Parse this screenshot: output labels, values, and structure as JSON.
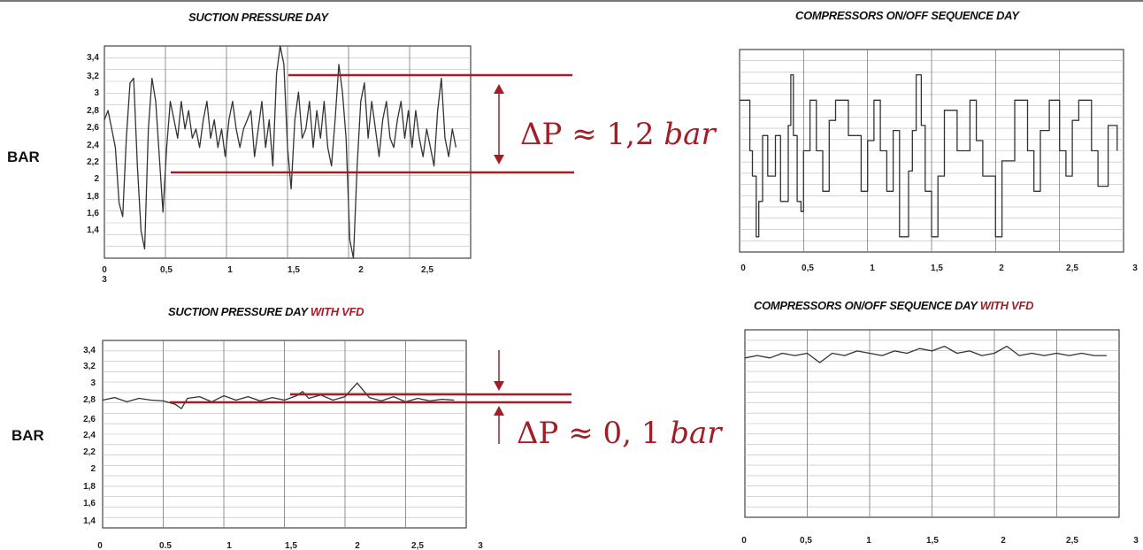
{
  "titles": {
    "p1": "SUCTION PRESSURE DAY",
    "p2": "COMPRESSORS ON/OFF SEQUENCE DAY",
    "p3": "SUCTION PRESSURE DAY",
    "p4": "COMPRESSORS ON/OFF SEQUENCE DAY",
    "vfd": "WITH VFD"
  },
  "bar_label_top": "BAR",
  "bar_label_bottom": "BAR",
  "delta_top": {
    "prefix": "ΔP ≈ 1,2 ",
    "unit": "bar"
  },
  "delta_bottom": {
    "prefix": "ΔP ≈ 0, 1 ",
    "unit": "bar"
  },
  "colors": {
    "accent": "#a01f26",
    "line": "#333333",
    "grid": "#bbbbbb"
  },
  "chart_data": [
    {
      "id": "p1",
      "type": "line",
      "title": "SUCTION PRESSURE DAY",
      "ylabel": "BAR",
      "xlim": [
        0,
        3
      ],
      "ylim": [
        1.2,
        3.5
      ],
      "x_ticks": [
        "0",
        "0,5",
        "1",
        "1,5",
        "2",
        "2,5"
      ],
      "x_tick_extra": "3",
      "y_ticks": [
        "3,4",
        "3,2",
        "3",
        "2,8",
        "2,6",
        "2,4",
        "2,2",
        "2",
        "1,8",
        "1,6",
        "1,4"
      ],
      "reference_lines": [
        3.2,
        2.08
      ],
      "annotation": "ΔP ≈ 1,2 bar",
      "x": [
        0,
        0.03,
        0.06,
        0.09,
        0.12,
        0.15,
        0.18,
        0.21,
        0.24,
        0.27,
        0.3,
        0.33,
        0.36,
        0.39,
        0.42,
        0.45,
        0.48,
        0.51,
        0.54,
        0.57,
        0.6,
        0.63,
        0.66,
        0.69,
        0.72,
        0.75,
        0.78,
        0.81,
        0.84,
        0.87,
        0.9,
        0.93,
        0.96,
        0.99,
        1.02,
        1.05,
        1.08,
        1.11,
        1.14,
        1.17,
        1.2,
        1.23,
        1.26,
        1.29,
        1.32,
        1.35,
        1.38,
        1.41,
        1.44,
        1.47,
        1.5,
        1.53,
        1.56,
        1.59,
        1.62,
        1.65,
        1.68,
        1.71,
        1.74,
        1.77,
        1.8,
        1.83,
        1.86,
        1.89,
        1.92,
        1.95,
        1.98,
        2.01,
        2.04,
        2.07,
        2.1,
        2.13,
        2.16,
        2.19,
        2.22,
        2.25,
        2.28,
        2.31,
        2.34,
        2.37,
        2.4,
        2.43,
        2.46,
        2.49,
        2.52,
        2.55,
        2.58,
        2.61,
        2.64,
        2.67,
        2.7,
        2.73,
        2.76,
        2.79,
        2.82,
        2.85,
        2.88
      ],
      "y": [
        2.7,
        2.8,
        2.6,
        2.4,
        1.8,
        1.65,
        2.5,
        3.1,
        3.15,
        2.2,
        1.5,
        1.3,
        2.6,
        3.15,
        2.9,
        2.3,
        1.7,
        2.4,
        2.9,
        2.7,
        2.5,
        2.9,
        2.6,
        2.8,
        2.5,
        2.6,
        2.4,
        2.7,
        2.9,
        2.5,
        2.7,
        2.4,
        2.6,
        2.3,
        2.7,
        2.9,
        2.6,
        2.4,
        2.6,
        2.7,
        2.8,
        2.3,
        2.6,
        2.9,
        2.4,
        2.7,
        2.2,
        3.2,
        3.5,
        3.3,
        2.4,
        1.95,
        2.7,
        3.0,
        2.5,
        2.6,
        2.9,
        2.4,
        2.8,
        2.5,
        2.9,
        2.4,
        2.2,
        2.7,
        3.3,
        3.0,
        2.5,
        1.4,
        1.2,
        2.2,
        2.9,
        3.1,
        2.5,
        2.9,
        2.6,
        2.3,
        2.7,
        2.9,
        2.5,
        2.4,
        2.7,
        2.9,
        2.5,
        2.8,
        2.4,
        2.8,
        2.5,
        2.3,
        2.6,
        2.4,
        2.2,
        2.8,
        3.15,
        2.5,
        2.3,
        2.6,
        2.4
      ]
    },
    {
      "id": "p2",
      "type": "line",
      "title": "COMPRESSORS ON/OFF SEQUENCE DAY",
      "xlim": [
        0,
        3
      ],
      "ylim": [
        0,
        4
      ],
      "x_ticks": [
        "0",
        "0,5",
        "1",
        "1,5",
        "2",
        "2,5",
        "3"
      ],
      "x": [
        0,
        0.08,
        0.08,
        0.1,
        0.1,
        0.13,
        0.13,
        0.15,
        0.15,
        0.18,
        0.18,
        0.22,
        0.22,
        0.28,
        0.28,
        0.32,
        0.32,
        0.38,
        0.38,
        0.4,
        0.4,
        0.42,
        0.42,
        0.45,
        0.45,
        0.48,
        0.48,
        0.5,
        0.5,
        0.55,
        0.55,
        0.6,
        0.6,
        0.65,
        0.65,
        0.7,
        0.7,
        0.75,
        0.75,
        0.85,
        0.85,
        0.95,
        0.95,
        1.0,
        1.0,
        1.05,
        1.05,
        1.1,
        1.1,
        1.15,
        1.15,
        1.2,
        1.2,
        1.25,
        1.25,
        1.32,
        1.32,
        1.35,
        1.35,
        1.38,
        1.38,
        1.42,
        1.42,
        1.45,
        1.45,
        1.5,
        1.5,
        1.55,
        1.55,
        1.6,
        1.6,
        1.7,
        1.7,
        1.8,
        1.8,
        1.85,
        1.85,
        1.9,
        1.9,
        2.0,
        2.0,
        2.05,
        2.05,
        2.15,
        2.15,
        2.25,
        2.25,
        2.3,
        2.3,
        2.35,
        2.35,
        2.42,
        2.42,
        2.5,
        2.5,
        2.55,
        2.55,
        2.6,
        2.6,
        2.65,
        2.65,
        2.75,
        2.75,
        2.8,
        2.8,
        2.88,
        2.88,
        2.95,
        2.95
      ],
      "y": [
        3,
        3,
        2,
        2,
        1.5,
        1.5,
        0.3,
        0.3,
        1,
        1,
        2.3,
        2.3,
        1.5,
        1.5,
        2.3,
        2.3,
        1,
        1,
        2.5,
        2.5,
        3.5,
        3.5,
        2.3,
        2.3,
        1,
        1,
        0.8,
        0.8,
        2,
        2,
        3,
        3,
        2,
        2,
        1.2,
        1.2,
        2.6,
        2.6,
        3,
        3,
        2.3,
        2.3,
        1.2,
        1.2,
        2.2,
        2.2,
        3,
        3,
        2,
        2,
        1.2,
        1.2,
        2.4,
        2.4,
        0.3,
        0.3,
        1.6,
        1.6,
        2.4,
        2.4,
        3.5,
        3.5,
        2.5,
        2.5,
        1.2,
        1.2,
        0.3,
        0.3,
        1.5,
        1.5,
        2.8,
        2.8,
        2,
        2,
        3,
        3,
        2.2,
        2.2,
        1.5,
        1.5,
        0.3,
        0.3,
        1.8,
        1.8,
        3,
        3,
        2,
        2,
        1.2,
        1.2,
        2.4,
        2.4,
        3,
        3,
        2,
        2,
        1.5,
        1.5,
        2.6,
        2.6,
        3,
        3,
        2,
        2,
        1.3,
        1.3,
        2.5,
        2.5,
        2
      ]
    },
    {
      "id": "p3",
      "type": "line",
      "title": "SUCTION PRESSURE DAY WITH VFD",
      "ylabel": "BAR",
      "xlim": [
        0,
        3
      ],
      "ylim": [
        1.3,
        3.5
      ],
      "x_ticks": [
        "0",
        "0.5",
        "1",
        "1,5",
        "2",
        "2,5",
        "3"
      ],
      "y_ticks": [
        "3,4",
        "3,2",
        "3",
        "2,8",
        "2,6",
        "2,4",
        "2,2",
        "2",
        "1,8",
        "1,6",
        "1,4"
      ],
      "reference_lines": [
        2.83,
        2.76
      ],
      "annotation": "ΔP ≈ 0, 1 bar",
      "x": [
        0,
        0.1,
        0.2,
        0.3,
        0.4,
        0.5,
        0.6,
        0.65,
        0.7,
        0.8,
        0.9,
        1.0,
        1.1,
        1.2,
        1.3,
        1.4,
        1.5,
        1.6,
        1.65,
        1.7,
        1.8,
        1.9,
        2.0,
        2.1,
        2.2,
        2.3,
        2.4,
        2.5,
        2.6,
        2.7,
        2.8,
        2.9
      ],
      "y": [
        2.8,
        2.83,
        2.78,
        2.82,
        2.8,
        2.79,
        2.75,
        2.7,
        2.82,
        2.84,
        2.78,
        2.85,
        2.8,
        2.84,
        2.79,
        2.83,
        2.8,
        2.85,
        2.9,
        2.82,
        2.86,
        2.8,
        2.84,
        3.0,
        2.83,
        2.79,
        2.84,
        2.78,
        2.82,
        2.79,
        2.81,
        2.8
      ]
    },
    {
      "id": "p4",
      "type": "line",
      "title": "COMPRESSORS ON/OFF SEQUENCE DAY WITH VFD",
      "xlim": [
        0,
        3
      ],
      "ylim": [
        0,
        4
      ],
      "x_ticks": [
        "0",
        "0,5",
        "1",
        "1,5",
        "2",
        "2,5",
        "3"
      ],
      "x": [
        0,
        0.1,
        0.2,
        0.3,
        0.4,
        0.5,
        0.6,
        0.7,
        0.8,
        0.9,
        1.0,
        1.1,
        1.2,
        1.3,
        1.4,
        1.5,
        1.6,
        1.7,
        1.8,
        1.9,
        2.0,
        2.1,
        2.2,
        2.3,
        2.4,
        2.5,
        2.6,
        2.7,
        2.8,
        2.9
      ],
      "y": [
        3.4,
        3.45,
        3.4,
        3.5,
        3.45,
        3.5,
        3.3,
        3.5,
        3.45,
        3.55,
        3.5,
        3.45,
        3.55,
        3.5,
        3.6,
        3.55,
        3.65,
        3.5,
        3.55,
        3.45,
        3.5,
        3.65,
        3.45,
        3.5,
        3.45,
        3.5,
        3.45,
        3.5,
        3.45,
        3.45
      ]
    }
  ]
}
